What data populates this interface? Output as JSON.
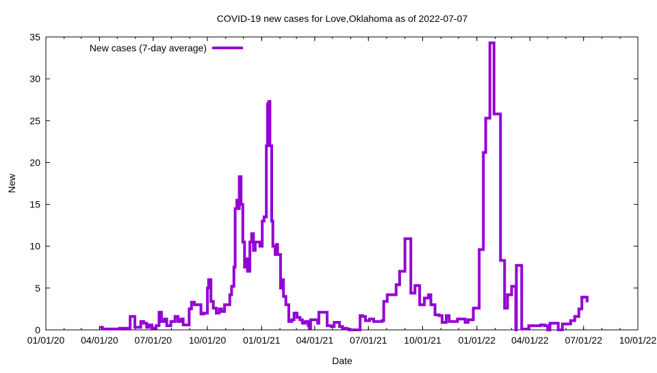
{
  "chart_data": {
    "type": "line",
    "title": "COVID-19 new cases for Love,Oklahoma as of 2022-07-07",
    "xlabel": "Date",
    "ylabel": "New",
    "x_unit": "days since 2020-01-01",
    "xlim": [
      0,
      1004
    ],
    "ylim": [
      0,
      35
    ],
    "yticks": [
      0,
      5,
      10,
      15,
      20,
      25,
      30,
      35
    ],
    "xticks": [
      {
        "day": 0,
        "label": "01/01/20"
      },
      {
        "day": 91,
        "label": "04/01/20"
      },
      {
        "day": 182,
        "label": "07/01/20"
      },
      {
        "day": 274,
        "label": "10/01/20"
      },
      {
        "day": 366,
        "label": "01/01/21"
      },
      {
        "day": 456,
        "label": "04/01/21"
      },
      {
        "day": 547,
        "label": "07/01/21"
      },
      {
        "day": 639,
        "label": "10/01/21"
      },
      {
        "day": 731,
        "label": "01/01/22"
      },
      {
        "day": 821,
        "label": "04/01/22"
      },
      {
        "day": 912,
        "label": "07/01/22"
      },
      {
        "day": 1004,
        "label": "10/01/22"
      }
    ],
    "grid": false,
    "legend_position": "top-left",
    "series": [
      {
        "name": "New cases (7-day average)",
        "color": "#9400d3",
        "points": [
          [
            92,
            0.3
          ],
          [
            96,
            0.1
          ],
          [
            120,
            0.1
          ],
          [
            125,
            0.2
          ],
          [
            140,
            0.1
          ],
          [
            143,
            1.6
          ],
          [
            150,
            1.6
          ],
          [
            151,
            0.3
          ],
          [
            159,
            0.3
          ],
          [
            161,
            1.0
          ],
          [
            166,
            0.8
          ],
          [
            171,
            0.3
          ],
          [
            175,
            0.6
          ],
          [
            180,
            0.2
          ],
          [
            187,
            0.5
          ],
          [
            192,
            2.1
          ],
          [
            196,
            1.0
          ],
          [
            201,
            1.3
          ],
          [
            205,
            0.5
          ],
          [
            212,
            1.0
          ],
          [
            219,
            1.6
          ],
          [
            224,
            1.0
          ],
          [
            229,
            1.3
          ],
          [
            233,
            0.6
          ],
          [
            238,
            0.6
          ],
          [
            243,
            2.5
          ],
          [
            247,
            3.3
          ],
          [
            252,
            3.0
          ],
          [
            256,
            3.0
          ],
          [
            263,
            1.9
          ],
          [
            268,
            2.0
          ],
          [
            274,
            5.0
          ],
          [
            276,
            6.0
          ],
          [
            280,
            3.4
          ],
          [
            284,
            2.6
          ],
          [
            289,
            2.0
          ],
          [
            294,
            2.5
          ],
          [
            298,
            2.2
          ],
          [
            303,
            3.0
          ],
          [
            308,
            3.0
          ],
          [
            312,
            4.2
          ],
          [
            315,
            5.2
          ],
          [
            317,
            5.2
          ],
          [
            319,
            7.5
          ],
          [
            321,
            14.5
          ],
          [
            324,
            15.5
          ],
          [
            326,
            14.5
          ],
          [
            328,
            18.3
          ],
          [
            331,
            15.0
          ],
          [
            334,
            10.5
          ],
          [
            337,
            7.5
          ],
          [
            339,
            8.5
          ],
          [
            342,
            7.0
          ],
          [
            346,
            10.5
          ],
          [
            349,
            11.5
          ],
          [
            352,
            9.5
          ],
          [
            355,
            10.5
          ],
          [
            359,
            10.5
          ],
          [
            363,
            10.0
          ],
          [
            367,
            13.0
          ],
          [
            370,
            13.5
          ],
          [
            374,
            22.0
          ],
          [
            376,
            27.0
          ],
          [
            378,
            27.3
          ],
          [
            380,
            22.0
          ],
          [
            383,
            13.0
          ],
          [
            385,
            10.0
          ],
          [
            389,
            9.0
          ],
          [
            391,
            10.2
          ],
          [
            393,
            9.0
          ],
          [
            398,
            5.0
          ],
          [
            400,
            6.0
          ],
          [
            403,
            4.0
          ],
          [
            407,
            3.0
          ],
          [
            412,
            1.0
          ],
          [
            417,
            1.2
          ],
          [
            421,
            2.0
          ],
          [
            426,
            1.5
          ],
          [
            431,
            1.2
          ],
          [
            435,
            0.8
          ],
          [
            440,
            1.0
          ],
          [
            445,
            0.5
          ],
          [
            447,
            0.2
          ],
          [
            449,
            1.2
          ],
          [
            456,
            1.2
          ],
          [
            461,
            0.8
          ],
          [
            463,
            2.1
          ],
          [
            475,
            2.1
          ],
          [
            477,
            0.5
          ],
          [
            484,
            0.4
          ],
          [
            489,
            0.9
          ],
          [
            493,
            0.9
          ],
          [
            498,
            0.4
          ],
          [
            503,
            0.2
          ],
          [
            510,
            0.1
          ],
          [
            514,
            0.0
          ],
          [
            530,
            0.0
          ],
          [
            533,
            1.7
          ],
          [
            537,
            1.6
          ],
          [
            542,
            1.1
          ],
          [
            549,
            1.3
          ],
          [
            556,
            1.0
          ],
          [
            563,
            1.0
          ],
          [
            570,
            1.1
          ],
          [
            573,
            3.4
          ],
          [
            579,
            4.2
          ],
          [
            591,
            4.2
          ],
          [
            594,
            5.4
          ],
          [
            600,
            7.0
          ],
          [
            607,
            7.0
          ],
          [
            609,
            10.9
          ],
          [
            616,
            10.9
          ],
          [
            619,
            4.4
          ],
          [
            623,
            4.4
          ],
          [
            626,
            5.3
          ],
          [
            631,
            5.3
          ],
          [
            634,
            3.0
          ],
          [
            639,
            3.0
          ],
          [
            642,
            3.8
          ],
          [
            646,
            3.8
          ],
          [
            649,
            4.2
          ],
          [
            651,
            4.2
          ],
          [
            653,
            3.0
          ],
          [
            658,
            3.0
          ],
          [
            660,
            1.8
          ],
          [
            667,
            1.7
          ],
          [
            672,
            0.9
          ],
          [
            679,
            1.7
          ],
          [
            684,
            1.0
          ],
          [
            698,
            1.3
          ],
          [
            711,
            0.9
          ],
          [
            716,
            1.2
          ],
          [
            721,
            1.2
          ],
          [
            725,
            2.6
          ],
          [
            732,
            2.6
          ],
          [
            735,
            9.6
          ],
          [
            742,
            21.2
          ],
          [
            746,
            25.3
          ],
          [
            753,
            34.3
          ],
          [
            760,
            25.8
          ],
          [
            767,
            25.8
          ],
          [
            771,
            8.3
          ],
          [
            776,
            8.3
          ],
          [
            778,
            2.6
          ],
          [
            781,
            2.6
          ],
          [
            783,
            4.2
          ],
          [
            788,
            4.2
          ],
          [
            790,
            5.2
          ],
          [
            795,
            5.2
          ],
          [
            797,
            0.0
          ],
          [
            798,
            7.7
          ],
          [
            805,
            7.7
          ],
          [
            807,
            0.1
          ],
          [
            814,
            0.1
          ],
          [
            819,
            0.5
          ],
          [
            832,
            0.5
          ],
          [
            839,
            0.6
          ],
          [
            846,
            0.5
          ],
          [
            851,
            0.0
          ],
          [
            854,
            0.0
          ],
          [
            855,
            0.8
          ],
          [
            868,
            0.8
          ],
          [
            869,
            0.0
          ],
          [
            874,
            0.0
          ],
          [
            876,
            0.7
          ],
          [
            883,
            0.7
          ],
          [
            890,
            1.1
          ],
          [
            897,
            1.6
          ],
          [
            904,
            2.5
          ],
          [
            909,
            3.9
          ],
          [
            916,
            3.9
          ],
          [
            918,
            3.3
          ]
        ]
      }
    ]
  }
}
